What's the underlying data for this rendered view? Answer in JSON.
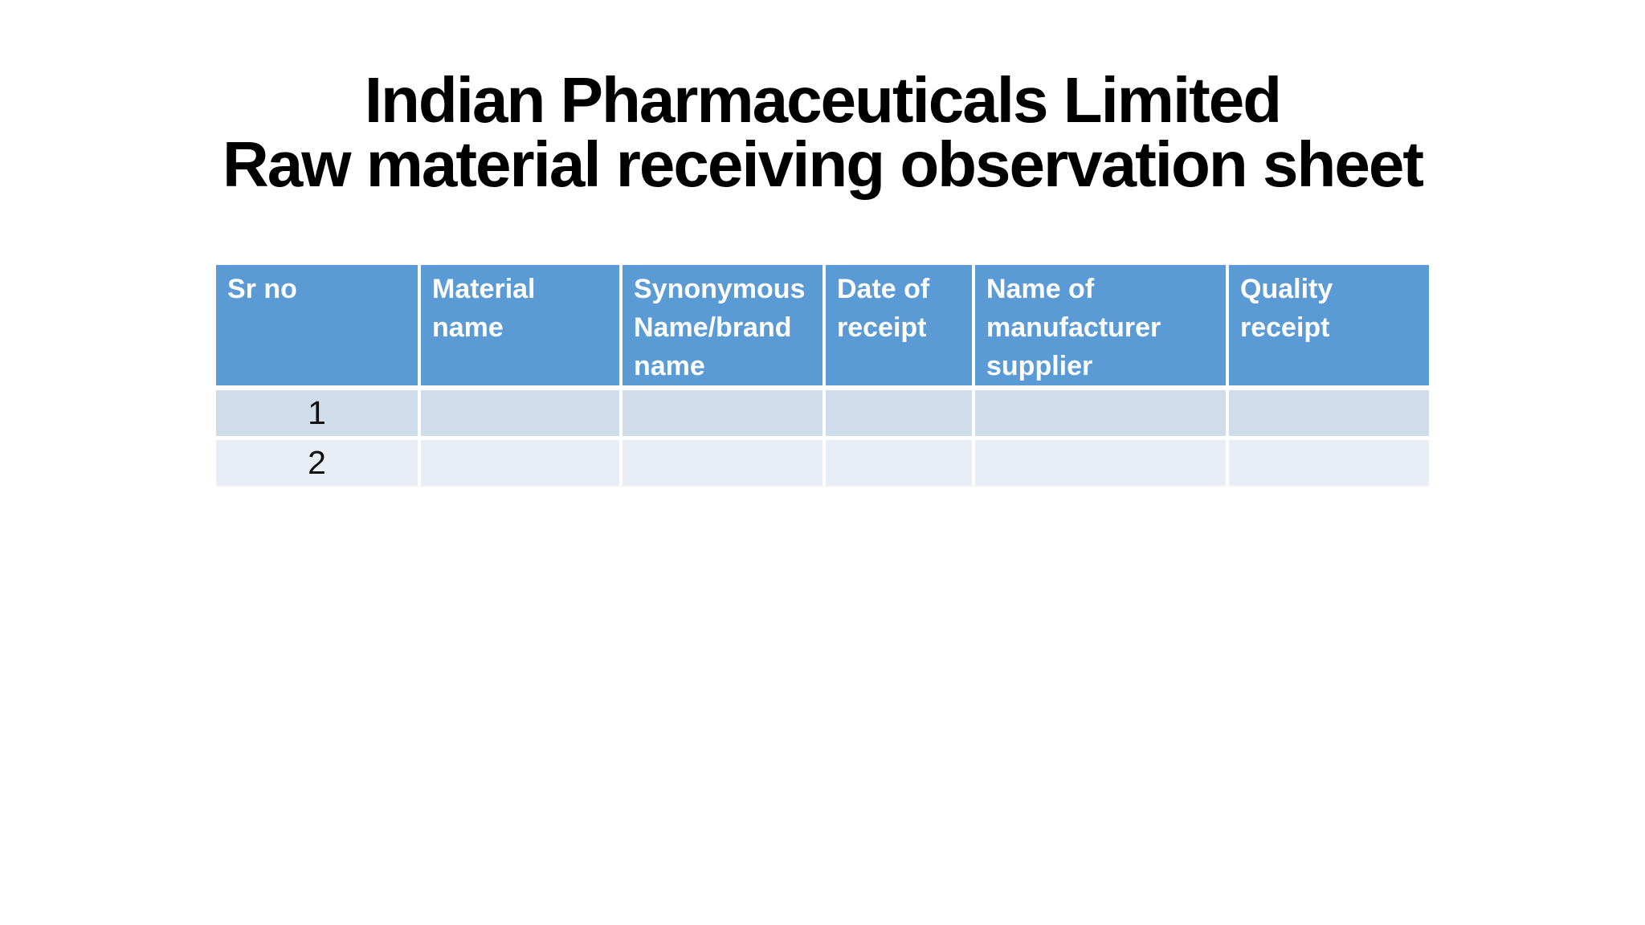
{
  "title": {
    "line1": "Indian Pharmaceuticals Limited",
    "line2": "Raw material receiving observation sheet"
  },
  "table": {
    "columns": [
      "Sr no",
      "Material name",
      "Synonymous Name/brand name",
      "Date of receipt",
      "Name of manufacturer supplier",
      "Quality receipt"
    ],
    "rows": [
      {
        "cells": [
          "1",
          "",
          "",
          "",
          "",
          ""
        ]
      },
      {
        "cells": [
          "2",
          "",
          "",
          "",
          "",
          ""
        ]
      }
    ]
  },
  "colors": {
    "header_background": "#5B9BD5",
    "header_text": "#FFFFFF",
    "row_odd_background": "#CFDCEA",
    "row_even_background": "#E9EDF6",
    "separator": "#FFFFFF",
    "title_text": "#000000",
    "body_text": "#111111"
  }
}
